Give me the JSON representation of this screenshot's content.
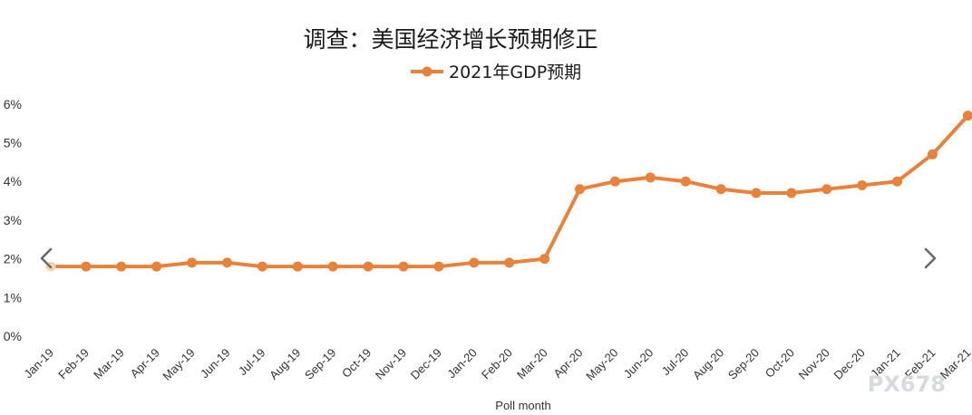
{
  "colors": {
    "series": "#e8823a",
    "first_point": "#f5d2b4",
    "nav": "#666b70",
    "watermark": "#d7dbe0"
  },
  "nav": {
    "left_icon": "chevron-left-icon",
    "right_icon": "chevron-right-icon"
  },
  "watermark": "PX678",
  "chart_data": {
    "type": "line",
    "title": "调查：美国经济增长预期修正",
    "xlabel": "Poll month",
    "ylabel": "",
    "ylim": [
      0,
      6
    ],
    "yticks": [
      "0%",
      "1%",
      "2%",
      "3%",
      "4%",
      "5%",
      "6%"
    ],
    "grid": false,
    "legend": "top-center",
    "categories": [
      "Jan-19",
      "Feb-19",
      "Mar-19",
      "Apr-19",
      "May-19",
      "Jun-19",
      "Jul-19",
      "Aug-19",
      "Sep-19",
      "Oct-19",
      "Nov-19",
      "Dec-19",
      "Jan-20",
      "Feb-20",
      "Mar-20",
      "Apr-20",
      "May-20",
      "Jun-20",
      "Jul-20",
      "Aug-20",
      "Sep-20",
      "Oct-20",
      "Nov-20",
      "Dec-20",
      "Jan-21",
      "Feb-21",
      "Mar-21"
    ],
    "series": [
      {
        "name": "2021年GDP预期",
        "values": [
          1.8,
          1.8,
          1.8,
          1.8,
          1.9,
          1.9,
          1.8,
          1.8,
          1.8,
          1.8,
          1.8,
          1.8,
          1.9,
          1.9,
          2.0,
          3.8,
          4.0,
          4.1,
          4.0,
          3.8,
          3.7,
          3.7,
          3.8,
          3.9,
          4.0,
          4.7,
          5.7
        ]
      }
    ]
  }
}
